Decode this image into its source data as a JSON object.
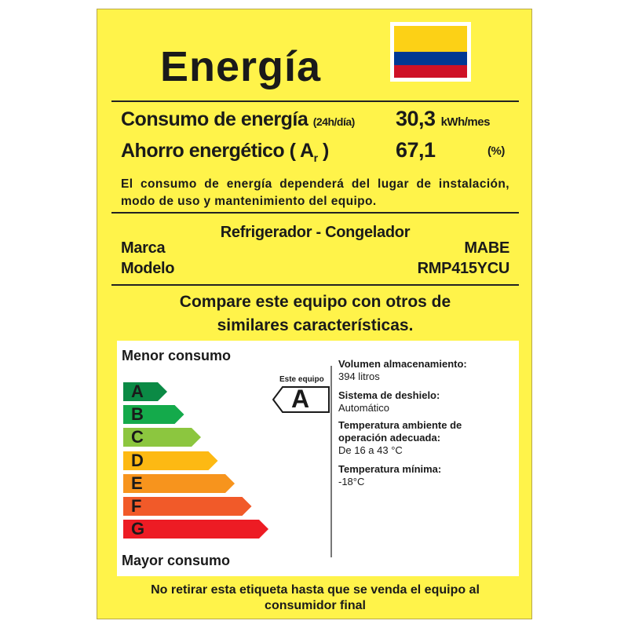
{
  "title": "Energía",
  "flag": {
    "name": "colombia-flag",
    "colors": [
      "#fcd116",
      "#003893",
      "#ce1126"
    ]
  },
  "consumo": {
    "label": "Consumo de energía",
    "sub": "(24h/día)",
    "value": "30,3",
    "unit": "kWh/mes"
  },
  "ahorro": {
    "label": "Ahorro energético",
    "open": "( A",
    "subscript": "r",
    "close": ")",
    "value": "67,1",
    "unit": "(%)"
  },
  "note": "El consumo de energía dependerá del lugar de instalación, modo de uso y mantenimiento del equipo.",
  "product": {
    "type": "Refrigerador - Congelador",
    "marca_label": "Marca",
    "marca": "MABE",
    "modelo_label": "Modelo",
    "modelo": "RMP415YCU"
  },
  "compare": [
    "Compare este equipo con otros de",
    "similares características."
  ],
  "scale": {
    "top_label": "Menor consumo",
    "bottom_label": "Mayor consumo",
    "classes": [
      {
        "letter": "A",
        "color": "#0b8a45"
      },
      {
        "letter": "B",
        "color": "#14aa4b"
      },
      {
        "letter": "C",
        "color": "#8cc63f"
      },
      {
        "letter": "D",
        "color": "#fdb913"
      },
      {
        "letter": "E",
        "color": "#f7941d"
      },
      {
        "letter": "F",
        "color": "#f15a29"
      },
      {
        "letter": "G",
        "color": "#ed1c24"
      }
    ],
    "this_label": "Este equipo",
    "this_class": "A"
  },
  "info": [
    {
      "label": "Volumen almacenamiento:",
      "value": "394 litros"
    },
    {
      "label": "Sistema de deshielo:",
      "value": "Automático"
    },
    {
      "label": "Temperatura ambiente de operación adecuada:",
      "value": "De 16 a 43 °C"
    },
    {
      "label": "Temperatura mínima:",
      "value": "-18°C"
    }
  ],
  "footer": "No retirar esta etiqueta hasta que se venda el equipo al consumidor final"
}
